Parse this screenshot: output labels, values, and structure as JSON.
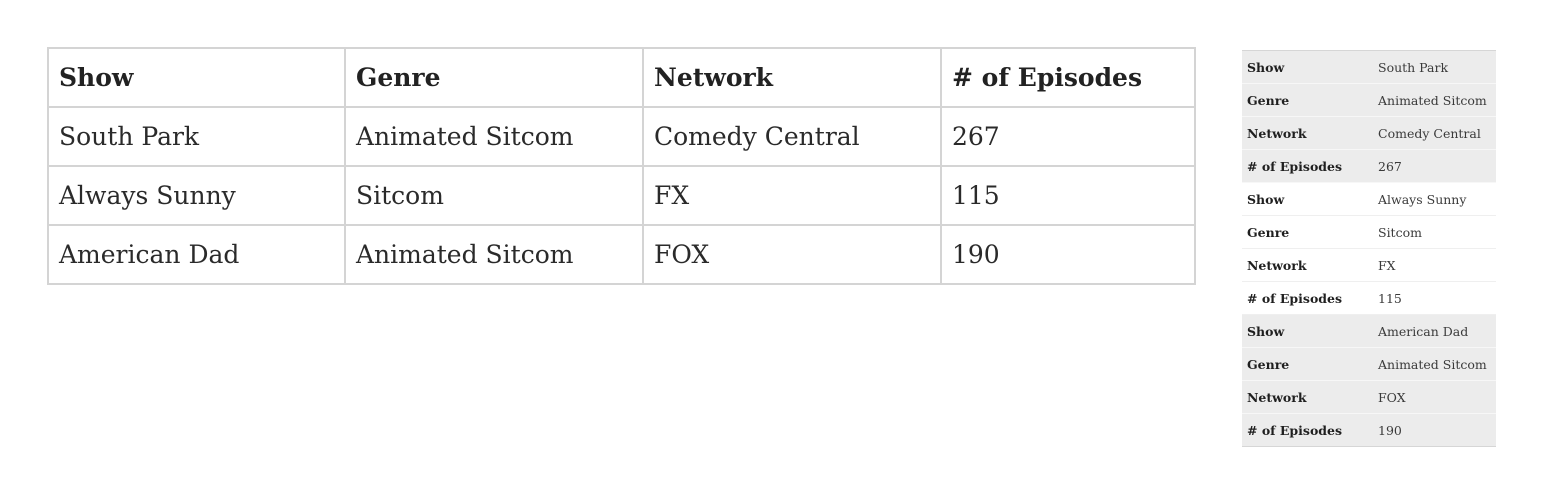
{
  "table": {
    "headers": [
      "Show",
      "Genre",
      "Network",
      "# of Episodes"
    ],
    "rows": [
      [
        "South Park",
        "Animated Sitcom",
        "Comedy Central",
        "267"
      ],
      [
        "Always Sunny",
        "Sitcom",
        "FX",
        "115"
      ],
      [
        "American Dad",
        "Animated Sitcom",
        "FOX",
        "190"
      ]
    ]
  },
  "colors": {
    "border": "#d4d4d4",
    "stripe": "#ececec",
    "text": "#222222"
  }
}
